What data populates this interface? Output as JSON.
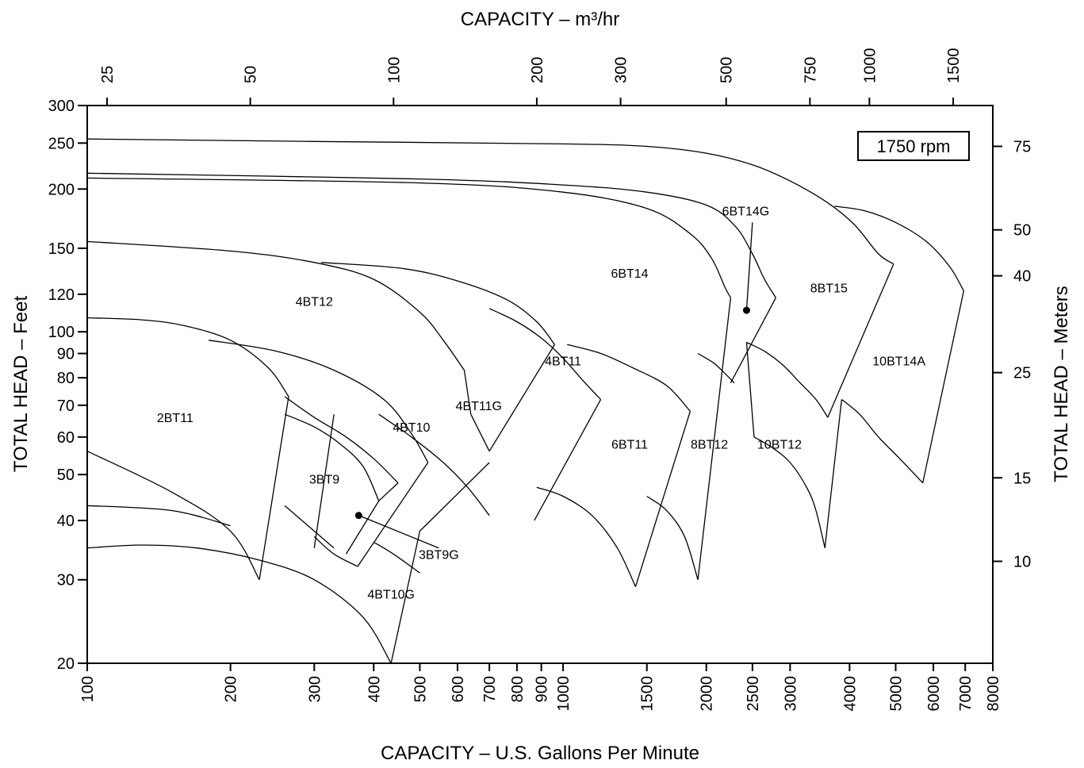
{
  "chart_data": {
    "type": "line",
    "title": "",
    "xlabel": "CAPACITY – U.S. Gallons Per Minute",
    "x2label": "CAPACITY – m³/hr",
    "ylabel": "TOTAL HEAD – Feet",
    "y2label": "TOTAL HEAD – Meters",
    "x_scale": "log",
    "y_scale": "log",
    "xlim": [
      100,
      8000
    ],
    "ylim": [
      20,
      300
    ],
    "x_ticks": [
      100,
      200,
      300,
      400,
      500,
      600,
      700,
      800,
      900,
      1000,
      1500,
      2000,
      2500,
      3000,
      4000,
      5000,
      6000,
      7000,
      8000
    ],
    "x_tick_labels": [
      "100",
      "200",
      "300",
      "400",
      "500",
      "600",
      "700",
      "800",
      "900",
      "1000",
      "1500",
      "2000",
      "2500",
      "3000",
      "4000",
      "5000",
      "6000",
      "7000",
      "8000"
    ],
    "y_ticks": [
      20,
      30,
      40,
      50,
      60,
      70,
      80,
      90,
      100,
      120,
      150,
      200,
      250,
      300
    ],
    "y_tick_labels": [
      "20",
      "30",
      "40",
      "50",
      "60",
      "70",
      "80",
      "90",
      "100",
      "120",
      "150",
      "200",
      "250",
      "300"
    ],
    "x2_ticks": [
      25,
      50,
      100,
      200,
      300,
      500,
      750,
      1000,
      1500
    ],
    "x2_tick_labels": [
      "25",
      "50",
      "100",
      "200",
      "300",
      "500",
      "750",
      "1000",
      "1500"
    ],
    "y2_ticks": [
      10,
      15,
      25,
      40,
      50,
      75
    ],
    "y2_tick_labels": [
      "10",
      "15",
      "25",
      "40",
      "50",
      "75"
    ],
    "grid": false,
    "legend": "none",
    "speed_label": "1750 rpm",
    "regions": [
      {
        "label": "2BT11",
        "gpm": 153,
        "head": 66
      },
      {
        "label": "3BT9",
        "gpm": 315,
        "head": 49
      },
      {
        "label": "3BT9G",
        "gpm": 548,
        "head": 34
      },
      {
        "label": "4BT10G",
        "gpm": 435,
        "head": 28
      },
      {
        "label": "4BT10",
        "gpm": 480,
        "head": 63
      },
      {
        "label": "4BT12",
        "gpm": 300,
        "head": 116
      },
      {
        "label": "4BT11G",
        "gpm": 665,
        "head": 70
      },
      {
        "label": "4BT11",
        "gpm": 1000,
        "head": 87
      },
      {
        "label": "6BT11",
        "gpm": 1380,
        "head": 58
      },
      {
        "label": "6BT14",
        "gpm": 1380,
        "head": 133
      },
      {
        "label": "8BT12",
        "gpm": 2030,
        "head": 58
      },
      {
        "label": "6BT14G",
        "gpm": 2420,
        "head": 180
      },
      {
        "label": "10BT12",
        "gpm": 2850,
        "head": 58
      },
      {
        "label": "8BT15",
        "gpm": 3620,
        "head": 124
      },
      {
        "label": "10BT14A",
        "gpm": 5080,
        "head": 87
      }
    ],
    "series": [
      {
        "values": [
          [
            100,
            56
          ],
          [
            150,
            46
          ],
          [
            200,
            38
          ],
          [
            230,
            30
          ]
        ]
      },
      {
        "values": [
          [
            100,
            43
          ],
          [
            150,
            42
          ],
          [
            200,
            39
          ]
        ]
      },
      {
        "values": [
          [
            100,
            35
          ],
          [
            130,
            35.5
          ],
          [
            170,
            35
          ],
          [
            230,
            33
          ],
          [
            300,
            30
          ],
          [
            380,
            25
          ],
          [
            435,
            20
          ]
        ]
      },
      {
        "values": [
          [
            100,
            107
          ],
          [
            130,
            106
          ],
          [
            160,
            103
          ],
          [
            200,
            96
          ],
          [
            240,
            84
          ],
          [
            265,
            73
          ]
        ]
      },
      {
        "values": [
          [
            260,
            73
          ],
          [
            300,
            66
          ],
          [
            350,
            60
          ],
          [
            400,
            54
          ],
          [
            450,
            48
          ]
        ]
      },
      {
        "values": [
          [
            260,
            67
          ],
          [
            300,
            63
          ],
          [
            340,
            58
          ],
          [
            380,
            52
          ],
          [
            410,
            44
          ]
        ]
      },
      {
        "values": [
          [
            180,
            96
          ],
          [
            250,
            91
          ],
          [
            330,
            83
          ],
          [
            420,
            72
          ],
          [
            480,
            61
          ],
          [
            520,
            53
          ]
        ]
      },
      {
        "values": [
          [
            410,
            67
          ],
          [
            480,
            60
          ],
          [
            560,
            53
          ],
          [
            630,
            47
          ],
          [
            700,
            41
          ]
        ]
      },
      {
        "values": [
          [
            260,
            43
          ],
          [
            300,
            38
          ],
          [
            330,
            35
          ]
        ]
      },
      {
        "values": [
          [
            300,
            37
          ],
          [
            330,
            34
          ],
          [
            370,
            32
          ]
        ]
      },
      {
        "values": [
          [
            400,
            36
          ],
          [
            440,
            34
          ],
          [
            500,
            31
          ]
        ]
      },
      {
        "values": [
          [
            100,
            155
          ],
          [
            200,
            148
          ],
          [
            300,
            140
          ],
          [
            400,
            129
          ],
          [
            500,
            110
          ],
          [
            560,
            96
          ],
          [
            620,
            83
          ]
        ]
      },
      {
        "values": [
          [
            310,
            140
          ],
          [
            460,
            136
          ],
          [
            600,
            128
          ],
          [
            760,
            117
          ],
          [
            880,
            105
          ],
          [
            960,
            94
          ]
        ]
      },
      {
        "values": [
          [
            700,
            112
          ],
          [
            800,
            105
          ],
          [
            900,
            97
          ],
          [
            1000,
            88
          ],
          [
            1100,
            79
          ],
          [
            1200,
            72
          ]
        ]
      },
      {
        "values": [
          [
            1020,
            94
          ],
          [
            1200,
            90
          ],
          [
            1400,
            84
          ],
          [
            1650,
            77
          ],
          [
            1850,
            68
          ]
        ]
      },
      {
        "values": [
          [
            880,
            47
          ],
          [
            1000,
            45
          ],
          [
            1150,
            41
          ],
          [
            1300,
            35
          ],
          [
            1420,
            29
          ]
        ]
      },
      {
        "values": [
          [
            1500,
            45
          ],
          [
            1650,
            42
          ],
          [
            1800,
            37
          ],
          [
            1920,
            30
          ]
        ]
      },
      {
        "values": [
          [
            100,
            211
          ],
          [
            500,
            206
          ],
          [
            1000,
            197
          ],
          [
            1500,
            182
          ],
          [
            1850,
            161
          ],
          [
            2050,
            143
          ],
          [
            2190,
            124
          ],
          [
            2250,
            118
          ]
        ]
      },
      {
        "values": [
          [
            100,
            216
          ],
          [
            500,
            210
          ],
          [
            1000,
            204
          ],
          [
            1500,
            197
          ],
          [
            2000,
            185
          ],
          [
            2300,
            167
          ],
          [
            2500,
            146
          ],
          [
            2650,
            129
          ],
          [
            2800,
            118
          ]
        ]
      },
      {
        "values": [
          [
            100,
            255
          ],
          [
            300,
            252
          ],
          [
            1000,
            249
          ],
          [
            1500,
            246
          ],
          [
            2000,
            238
          ],
          [
            2500,
            225
          ],
          [
            3000,
            208
          ],
          [
            3600,
            187
          ],
          [
            4100,
            168
          ],
          [
            4600,
            146
          ],
          [
            4950,
            139
          ]
        ]
      },
      {
        "values": [
          [
            3720,
            184
          ],
          [
            4300,
            180
          ],
          [
            5000,
            170
          ],
          [
            5800,
            155
          ],
          [
            6500,
            137
          ],
          [
            6950,
            122
          ]
        ]
      },
      {
        "values": [
          [
            1920,
            90
          ],
          [
            2070,
            86
          ],
          [
            2180,
            82
          ],
          [
            2290,
            78
          ]
        ]
      },
      {
        "values": [
          [
            2430,
            95
          ],
          [
            2650,
            91
          ],
          [
            2900,
            85
          ],
          [
            3150,
            78
          ],
          [
            3400,
            72
          ],
          [
            3600,
            66
          ]
        ]
      },
      {
        "values": [
          [
            2520,
            60
          ],
          [
            2750,
            57
          ],
          [
            3000,
            53
          ],
          [
            3250,
            47
          ],
          [
            3400,
            42
          ],
          [
            3550,
            35
          ]
        ]
      },
      {
        "values": [
          [
            3850,
            72
          ],
          [
            4200,
            67
          ],
          [
            4600,
            60
          ],
          [
            5100,
            54
          ],
          [
            5700,
            48
          ]
        ]
      }
    ],
    "segments": [
      [
        [
          230,
          30
        ],
        [
          265,
          73
        ]
      ],
      [
        [
          300,
          35
        ],
        [
          330,
          67
        ]
      ],
      [
        [
          350,
          34
        ],
        [
          410,
          44
        ]
      ],
      [
        [
          410,
          44
        ],
        [
          450,
          48
        ]
      ],
      [
        [
          370,
          32
        ],
        [
          520,
          53
        ]
      ],
      [
        [
          500,
          38
        ],
        [
          700,
          53
        ]
      ],
      [
        [
          435,
          20
        ],
        [
          500,
          38
        ]
      ],
      [
        [
          640,
          67
        ],
        [
          620,
          83
        ]
      ],
      [
        [
          700,
          56
        ],
        [
          640,
          67
        ]
      ],
      [
        [
          700,
          56
        ],
        [
          960,
          94
        ]
      ],
      [
        [
          870,
          40
        ],
        [
          1200,
          72
        ]
      ],
      [
        [
          1420,
          29
        ],
        [
          1850,
          68
        ]
      ],
      [
        [
          1920,
          30
        ],
        [
          2250,
          118
        ]
      ],
      [
        [
          2250,
          78
        ],
        [
          2800,
          118
        ]
      ],
      [
        [
          2520,
          60
        ],
        [
          2430,
          95
        ]
      ],
      [
        [
          3550,
          35
        ],
        [
          3850,
          72
        ]
      ],
      [
        [
          3600,
          66
        ],
        [
          4950,
          139
        ]
      ],
      [
        [
          5700,
          48
        ],
        [
          6950,
          122
        ]
      ]
    ],
    "markers": [
      {
        "gpm": 372,
        "head": 41
      },
      {
        "gpm": 2430,
        "head": 111
      }
    ],
    "leaders": [
      {
        "from": [
          372,
          41
        ],
        "to": [
          548,
          35
        ]
      },
      {
        "from": [
          2430,
          111
        ],
        "to": [
          2500,
          170
        ]
      }
    ]
  }
}
